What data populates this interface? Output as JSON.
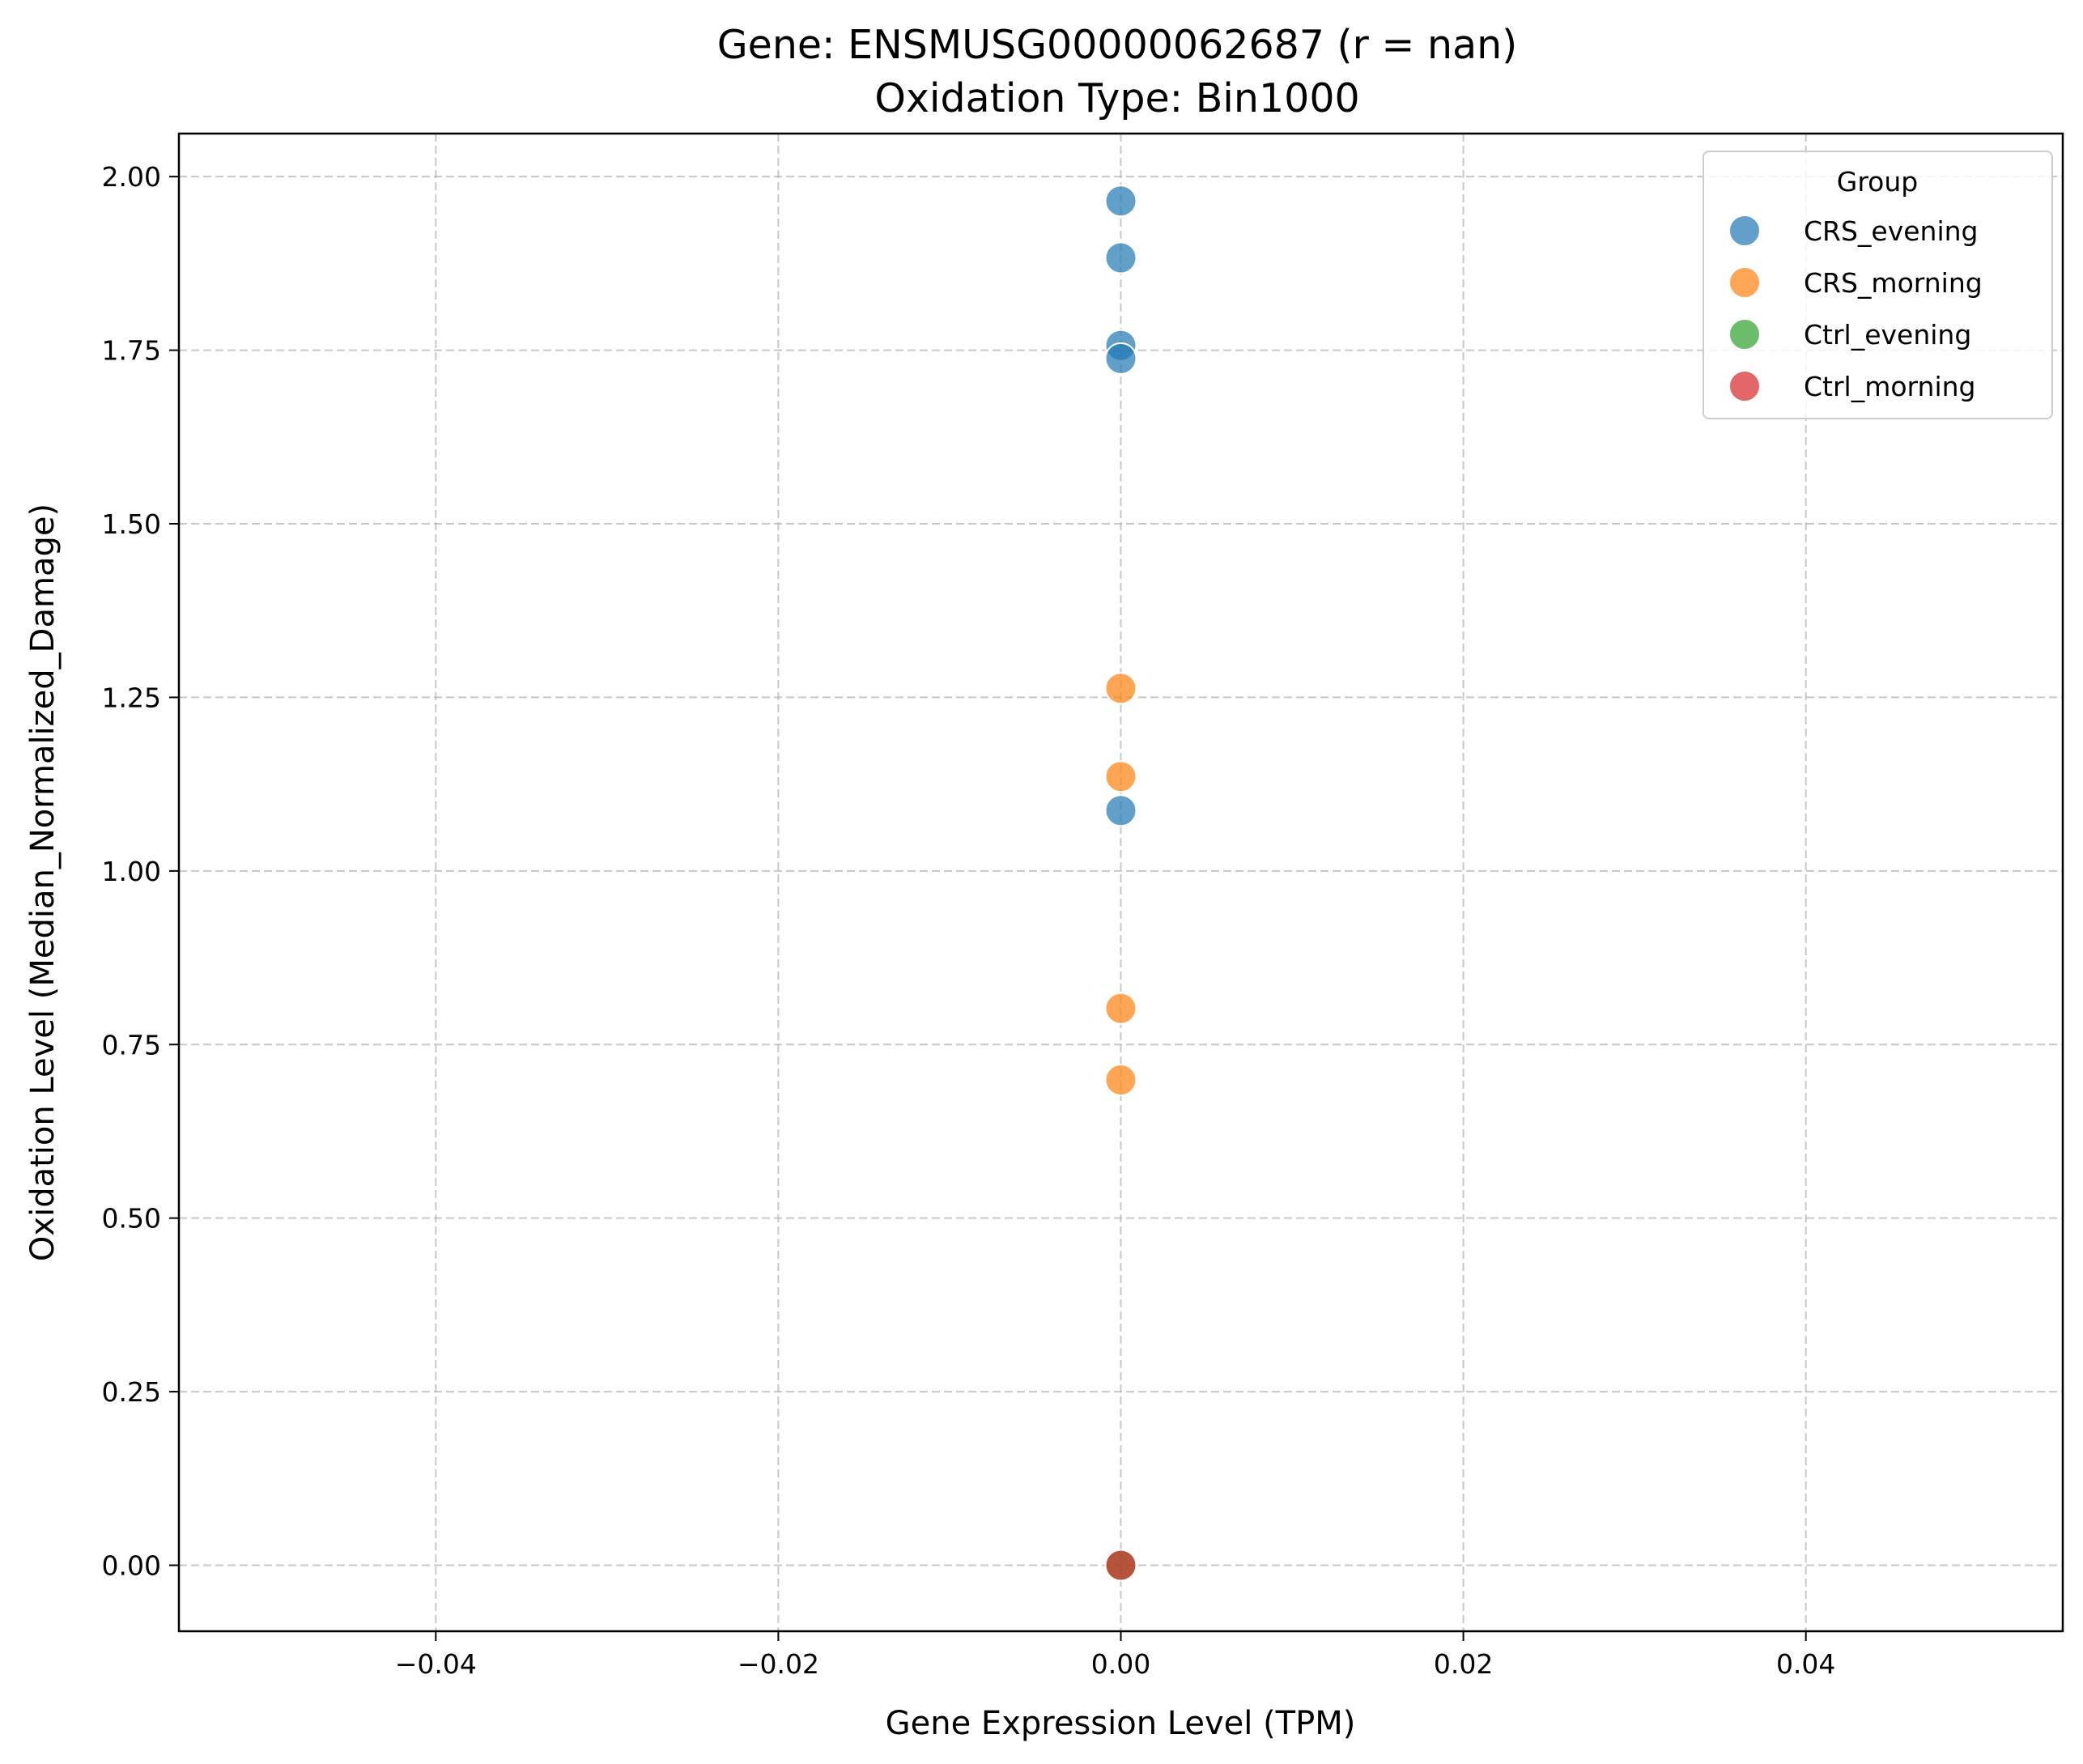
{
  "chart_data": {
    "type": "scatter",
    "title": "Gene: ENSMUSG00000062687 (r = nan)",
    "subtitle": "Oxidation Type: Bin1000",
    "xlabel": "Gene Expression Level (TPM)",
    "ylabel": "Oxidation Level (Median_Normalized_Damage)",
    "xlim": [
      -0.055,
      0.055
    ],
    "ylim": [
      -0.095,
      2.062
    ],
    "xticks": [
      -0.04,
      -0.02,
      0.0,
      0.02,
      0.04
    ],
    "xtick_labels": [
      "−0.04",
      "−0.02",
      "0.00",
      "0.02",
      "0.04"
    ],
    "yticks": [
      0.0,
      0.25,
      0.5,
      0.75,
      1.0,
      1.25,
      1.5,
      1.75,
      2.0
    ],
    "ytick_labels": [
      "0.00",
      "0.25",
      "0.50",
      "0.75",
      "1.00",
      "1.25",
      "1.50",
      "1.75",
      "2.00"
    ],
    "grid": true,
    "legend_title": "Group",
    "legend_position": "top-right",
    "series": [
      {
        "name": "CRS_evening",
        "color": "#1f77b4",
        "x": [
          0,
          0,
          0,
          0,
          0
        ],
        "y": [
          1.965,
          1.883,
          1.757,
          1.738,
          1.087
        ]
      },
      {
        "name": "CRS_morning",
        "color": "#ff7f0e",
        "x": [
          0,
          0,
          0,
          0
        ],
        "y": [
          1.263,
          1.136,
          0.802,
          0.699
        ]
      },
      {
        "name": "Ctrl_evening",
        "color": "#2ca02c",
        "x": [
          0
        ],
        "y": [
          0.0
        ]
      },
      {
        "name": "Ctrl_morning",
        "color": "#d62728",
        "x": [
          0
        ],
        "y": [
          0.0
        ]
      }
    ]
  }
}
